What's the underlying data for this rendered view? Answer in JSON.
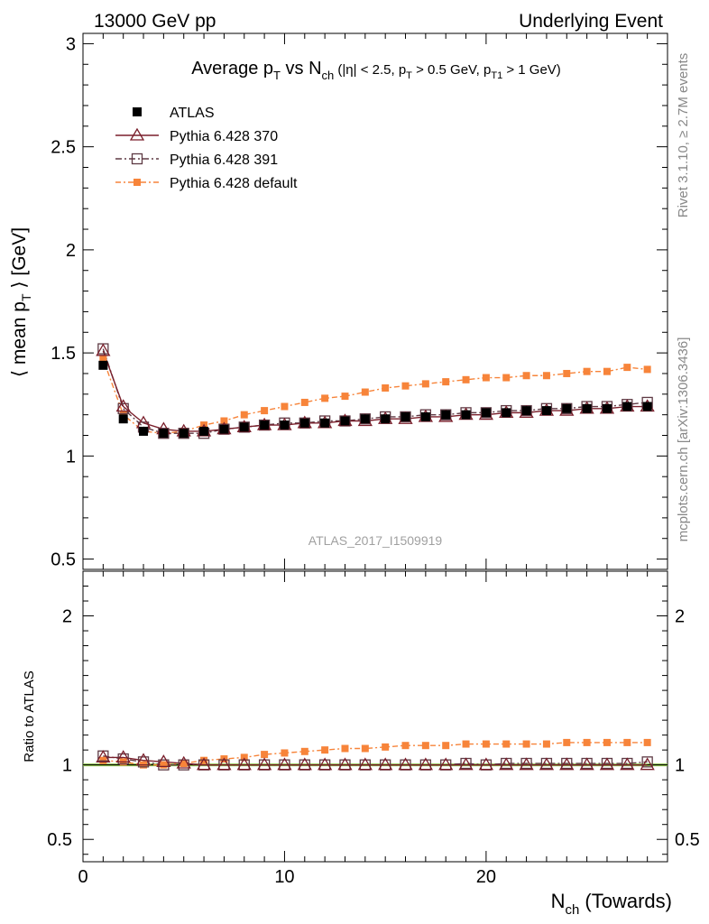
{
  "header": {
    "left": "13000 GeV pp",
    "right": "Underlying Event"
  },
  "side_labels": {
    "rivet": "Rivet 3.1.10, ≥ 2.7M events",
    "mcplots": "mcplots.cern.ch [arXiv:1306.3436]"
  },
  "watermark": "ATLAS_2017_I1509919",
  "main_title": {
    "avg": "Average p",
    "avg_sub": "T",
    "vs": " vs N",
    "vs_sub": "ch",
    "cut_a": " (|η| < 2.5, p",
    "cut_a_sub": "T",
    "cut_b": " > 0.5 GeV, p",
    "cut_b_sub": "T1",
    "cut_c": " > 1 GeV)"
  },
  "ylabel": {
    "a": "⟨ mean p",
    "sub": "T",
    "b": " ⟩ [GeV]"
  },
  "ratio_ylabel": "Ratio to ATLAS",
  "xlabel": {
    "a": "N",
    "sub": "ch",
    "b": " (Towards)"
  },
  "colors": {
    "atlas": "#000000",
    "p370": "#7a1f2b",
    "p391": "#5e3a44",
    "default": "#f7843a",
    "ratio_ref": "#8bc34a"
  },
  "chart_data": [
    {
      "type": "scatter",
      "panel": "main",
      "x": [
        1,
        2,
        3,
        4,
        5,
        6,
        7,
        8,
        9,
        10,
        11,
        12,
        13,
        14,
        15,
        16,
        17,
        18,
        19,
        20,
        21,
        22,
        23,
        24,
        25,
        26,
        27,
        28
      ],
      "xlim": [
        0,
        29
      ],
      "ylim": [
        0.45,
        3.05
      ],
      "yticks": [
        0.5,
        1,
        1.5,
        2,
        2.5,
        3
      ],
      "ytick_labels": [
        "0.5",
        "1",
        "1.5",
        "2",
        "2.5",
        "3"
      ],
      "legend": "top-left",
      "series": [
        {
          "name": "ATLAS",
          "style": "data",
          "values": [
            1.44,
            1.18,
            1.12,
            1.11,
            1.11,
            1.12,
            1.13,
            1.14,
            1.15,
            1.15,
            1.16,
            1.16,
            1.17,
            1.18,
            1.18,
            1.19,
            1.19,
            1.2,
            1.2,
            1.21,
            1.21,
            1.22,
            1.22,
            1.23,
            1.23,
            1.23,
            1.24,
            1.24
          ]
        },
        {
          "name": "Pythia 6.428 370",
          "style": "triangle-solid",
          "values": [
            1.51,
            1.24,
            1.16,
            1.13,
            1.12,
            1.12,
            1.13,
            1.14,
            1.15,
            1.15,
            1.16,
            1.16,
            1.17,
            1.17,
            1.18,
            1.18,
            1.19,
            1.19,
            1.2,
            1.2,
            1.21,
            1.21,
            1.22,
            1.22,
            1.23,
            1.23,
            1.24,
            1.24
          ]
        },
        {
          "name": "Pythia 6.428 391",
          "style": "square-dashdot",
          "values": [
            1.52,
            1.23,
            1.14,
            1.11,
            1.11,
            1.11,
            1.13,
            1.14,
            1.15,
            1.16,
            1.16,
            1.17,
            1.17,
            1.18,
            1.19,
            1.19,
            1.2,
            1.2,
            1.21,
            1.21,
            1.22,
            1.22,
            1.23,
            1.23,
            1.24,
            1.24,
            1.25,
            1.26
          ]
        },
        {
          "name": "Pythia 6.428 default",
          "style": "filledsquare-dashdot",
          "values": [
            1.47,
            1.2,
            1.12,
            1.11,
            1.12,
            1.15,
            1.17,
            1.2,
            1.22,
            1.24,
            1.26,
            1.28,
            1.29,
            1.31,
            1.33,
            1.34,
            1.35,
            1.36,
            1.37,
            1.38,
            1.38,
            1.39,
            1.39,
            1.4,
            1.41,
            1.41,
            1.43,
            1.42
          ]
        }
      ]
    },
    {
      "type": "scatter",
      "panel": "ratio",
      "x": [
        1,
        2,
        3,
        4,
        5,
        6,
        7,
        8,
        9,
        10,
        11,
        12,
        13,
        14,
        15,
        16,
        17,
        18,
        19,
        20,
        21,
        22,
        23,
        24,
        25,
        26,
        27,
        28
      ],
      "xlim": [
        0,
        29
      ],
      "ylim": [
        0.35,
        2.3
      ],
      "yticks": [
        0.5,
        1,
        2
      ],
      "ytick_labels": [
        "0.5",
        "1",
        "2"
      ],
      "xticks": [
        0,
        10,
        20
      ],
      "xtick_labels": [
        "0",
        "10",
        "20"
      ],
      "series": [
        {
          "name": "Pythia 6.428 370",
          "style": "triangle-solid",
          "values": [
            1.05,
            1.05,
            1.03,
            1.02,
            1.01,
            1.0,
            1.0,
            1.0,
            1.0,
            1.0,
            1.0,
            1.0,
            1.0,
            1.0,
            1.0,
            1.0,
            1.0,
            1.0,
            1.0,
            1.0,
            1.0,
            1.0,
            1.0,
            1.0,
            1.0,
            1.0,
            1.0,
            1.0
          ]
        },
        {
          "name": "Pythia 6.428 391",
          "style": "square-dashdot",
          "values": [
            1.06,
            1.04,
            1.02,
            1.0,
            1.0,
            1.0,
            1.0,
            1.0,
            1.0,
            1.0,
            1.0,
            1.0,
            1.0,
            1.0,
            1.0,
            1.0,
            1.0,
            1.0,
            1.01,
            1.0,
            1.01,
            1.01,
            1.01,
            1.01,
            1.01,
            1.01,
            1.01,
            1.02
          ]
        },
        {
          "name": "Pythia 6.428 default",
          "style": "filledsquare-dashdot",
          "values": [
            1.03,
            1.02,
            1.0,
            1.0,
            1.01,
            1.03,
            1.04,
            1.05,
            1.07,
            1.08,
            1.09,
            1.1,
            1.11,
            1.11,
            1.12,
            1.13,
            1.13,
            1.13,
            1.14,
            1.14,
            1.14,
            1.14,
            1.14,
            1.15,
            1.15,
            1.15,
            1.15,
            1.15
          ]
        }
      ]
    }
  ]
}
